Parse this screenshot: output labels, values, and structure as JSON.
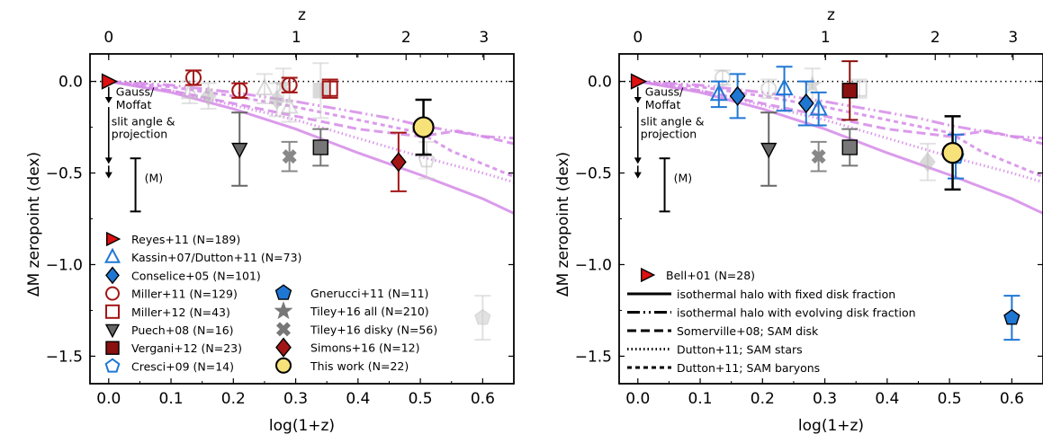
{
  "chart_data": [
    {
      "type": "scatter",
      "panel": "left",
      "xlabel": "log(1+z)",
      "ylabel": "ΔM zeropoint (dex)",
      "top_xlabel": "z",
      "xlim": [
        -0.03,
        0.65
      ],
      "ylim": [
        -1.65,
        0.15
      ],
      "x_ticks": [
        "0.0",
        "0.1",
        "0.2",
        "0.3",
        "0.4",
        "0.5",
        "0.6"
      ],
      "y_ticks": [
        "0.0",
        "−0.5",
        "−1.0",
        "−1.5"
      ],
      "top_ticks": [
        "0",
        "1",
        "2",
        "3"
      ],
      "annotations": {
        "psf": "Gauss/\nMoffat",
        "slit": "slit angle &\nprojection",
        "m": "(M)"
      },
      "legend_col1": [
        {
          "label": "Reyes+11 (N=189)",
          "marker": "tri-right",
          "color": "#dd1111"
        },
        {
          "label": "Kassin+07/Dutton+11 (N=73)",
          "marker": "tri-up-open",
          "color": "#1f77d4"
        },
        {
          "label": "Conselice+05 (N=101)",
          "marker": "diamond",
          "color": "#1f77d4"
        },
        {
          "label": "Miller+11 (N=129)",
          "marker": "circle-open",
          "color": "#a31515"
        },
        {
          "label": "Miller+12 (N=43)",
          "marker": "square-open",
          "color": "#a31515"
        },
        {
          "label": "Puech+08 (N=16)",
          "marker": "tri-down",
          "color": "#666666"
        },
        {
          "label": "Vergani+12 (N=23)",
          "marker": "square",
          "color": "#8b1010"
        },
        {
          "label": "Cresci+09 (N=14)",
          "marker": "pentagon-open",
          "color": "#1f77d4"
        }
      ],
      "legend_col2": [
        {
          "label": "Gnerucci+11 (N=11)",
          "marker": "pentagon",
          "color": "#1f77d4"
        },
        {
          "label": "Tiley+16 all (N=210)",
          "marker": "star",
          "color": "#777777"
        },
        {
          "label": "Tiley+16 disky (N=56)",
          "marker": "x",
          "color": "#777777"
        },
        {
          "label": "Simons+16 (N=12)",
          "marker": "diamond",
          "color": "#a31515"
        },
        {
          "label": "This work (N=22)",
          "marker": "circle",
          "color": "#f7e27a"
        }
      ],
      "points": [
        {
          "name": "Reyes+11",
          "x": 0.0,
          "y": 0.0,
          "yerr": 0,
          "marker": "tri-right",
          "color": "#dd1111",
          "alpha": 1
        },
        {
          "name": "Miller+11",
          "x": 0.136,
          "y": 0.02,
          "yerr": 0.04,
          "marker": "circle-open",
          "color": "#a31515",
          "alpha": 1
        },
        {
          "name": "Miller+11",
          "x": 0.21,
          "y": -0.05,
          "yerr": 0.04,
          "marker": "circle-open",
          "color": "#a31515",
          "alpha": 1
        },
        {
          "name": "Miller+11",
          "x": 0.29,
          "y": -0.02,
          "yerr": 0.04,
          "marker": "circle-open",
          "color": "#a31515",
          "alpha": 1
        },
        {
          "name": "Miller+12",
          "x": 0.355,
          "y": -0.04,
          "yerr": 0.05,
          "marker": "square-open",
          "color": "#a31515",
          "alpha": 1
        },
        {
          "name": "Puech+08",
          "x": 0.21,
          "y": -0.37,
          "yerr": 0.2,
          "marker": "tri-down",
          "color": "#666666",
          "alpha": 1
        },
        {
          "name": "Tiley+16 disky",
          "x": 0.29,
          "y": -0.41,
          "yerr": 0.08,
          "marker": "x",
          "color": "#888888",
          "alpha": 1
        },
        {
          "name": "Vergani+12",
          "x": 0.34,
          "y": -0.36,
          "yerr": 0.1,
          "marker": "square",
          "color": "#777777",
          "alpha": 1
        },
        {
          "name": "Simons+16",
          "x": 0.465,
          "y": -0.44,
          "yerr": 0.16,
          "marker": "diamond",
          "color": "#a31515",
          "alpha": 1
        },
        {
          "name": "This work",
          "x": 0.505,
          "y": -0.25,
          "yerr": 0.15,
          "xerr": 0.012,
          "marker": "circle",
          "color": "#f7e27a",
          "alpha": 1
        },
        {
          "name": "Kassin+07/Dutton+11",
          "x": 0.13,
          "y": -0.06,
          "yerr": 0.06,
          "marker": "tri-up-open",
          "color": "#bbbbbb",
          "alpha": 0.55
        },
        {
          "name": "Conselice+05",
          "x": 0.16,
          "y": -0.08,
          "yerr": 0.07,
          "marker": "diamond",
          "color": "#bbbbbb",
          "alpha": 0.55
        },
        {
          "name": "Kassin+07/Dutton+11",
          "x": 0.25,
          "y": -0.04,
          "yerr": 0.08,
          "marker": "tri-up-open",
          "color": "#bbbbbb",
          "alpha": 0.55
        },
        {
          "name": "Conselice+05",
          "x": 0.27,
          "y": -0.1,
          "yerr": 0.09,
          "marker": "diamond",
          "color": "#bbbbbb",
          "alpha": 0.55
        },
        {
          "name": "Kassin+07/Dutton+11",
          "x": 0.29,
          "y": -0.14,
          "yerr": 0.08,
          "marker": "tri-up-open",
          "color": "#bbbbbb",
          "alpha": 0.55
        },
        {
          "name": "Tiley+16 all",
          "x": 0.28,
          "y": -0.02,
          "yerr": 0.09,
          "marker": "star",
          "color": "#bbbbbb",
          "alpha": 0.55
        },
        {
          "name": "Vergani+12",
          "x": 0.34,
          "y": -0.05,
          "yerr": 0.15,
          "marker": "square",
          "color": "#bbbbbb",
          "alpha": 0.55
        },
        {
          "name": "Cresci+09",
          "x": 0.51,
          "y": -0.43,
          "yerr": 0.1,
          "marker": "pentagon-open",
          "color": "#bbbbbb",
          "alpha": 0.55
        },
        {
          "name": "Gnerucci+11",
          "x": 0.6,
          "y": -1.29,
          "yerr": 0.12,
          "marker": "pentagon",
          "color": "#cccccc",
          "alpha": 0.55
        }
      ],
      "model_lines": [
        {
          "style": "solid",
          "x": [
            0,
            0.1,
            0.2,
            0.3,
            0.4,
            0.5,
            0.6,
            0.65
          ],
          "y": [
            0,
            -0.06,
            -0.15,
            -0.26,
            -0.39,
            -0.51,
            -0.64,
            -0.72
          ]
        },
        {
          "style": "dotted",
          "x": [
            0,
            0.1,
            0.2,
            0.3,
            0.4,
            0.5,
            0.6,
            0.65
          ],
          "y": [
            0,
            -0.05,
            -0.13,
            -0.21,
            -0.31,
            -0.41,
            -0.5,
            -0.55
          ]
        },
        {
          "style": "dashdot",
          "x": [
            0,
            0.1,
            0.2,
            0.3,
            0.4,
            0.45,
            0.5,
            0.55,
            0.6,
            0.65
          ],
          "y": [
            0,
            -0.02,
            -0.06,
            -0.11,
            -0.17,
            -0.2,
            -0.24,
            -0.27,
            -0.3,
            -0.31
          ]
        },
        {
          "style": "dashed",
          "x": [
            0,
            0.1,
            0.2,
            0.3,
            0.4,
            0.5,
            0.56,
            0.6,
            0.65
          ],
          "y": [
            0,
            -0.05,
            -0.12,
            -0.19,
            -0.26,
            -0.3,
            -0.27,
            -0.3,
            -0.34
          ]
        },
        {
          "style": "dotdense",
          "x": [
            0,
            0.1,
            0.2,
            0.3,
            0.4,
            0.5,
            0.55,
            0.6,
            0.65
          ],
          "y": [
            0,
            -0.03,
            -0.08,
            -0.14,
            -0.21,
            -0.28,
            -0.38,
            -0.45,
            -0.52
          ]
        }
      ]
    },
    {
      "type": "scatter",
      "panel": "right",
      "xlabel": "log(1+z)",
      "ylabel": "ΔM zeropoint (dex)",
      "top_xlabel": "z",
      "xlim": [
        -0.03,
        0.65
      ],
      "ylim": [
        -1.65,
        0.15
      ],
      "x_ticks": [
        "0.0",
        "0.1",
        "0.2",
        "0.3",
        "0.4",
        "0.5",
        "0.6"
      ],
      "y_ticks": [
        "0.0",
        "−0.5",
        "−1.0",
        "−1.5"
      ],
      "top_ticks": [
        "0",
        "1",
        "2",
        "3"
      ],
      "annotations": {
        "psf": "Gauss/\nMoffat",
        "slit": "slit angle &\nprojection",
        "m": "(M)"
      },
      "legend": [
        {
          "label": "Bell+01 (N=28)",
          "marker": "tri-right",
          "color": "#dd1111"
        },
        {
          "label": "isothermal halo with fixed disk fraction",
          "style": "solid"
        },
        {
          "label": "isothermal halo with evolving disk fraction",
          "style": "dashdot"
        },
        {
          "label": "Somerville+08; SAM disk",
          "style": "dashed"
        },
        {
          "label": "Dutton+11; SAM stars",
          "style": "dotted"
        },
        {
          "label": "Dutton+11; SAM baryons",
          "style": "dotdense"
        }
      ],
      "points": [
        {
          "name": "Bell+01",
          "x": 0.0,
          "y": 0.0,
          "yerr": 0,
          "marker": "tri-right",
          "color": "#dd1111",
          "alpha": 1
        },
        {
          "name": "Kassin+07/Dutton+11",
          "x": 0.13,
          "y": -0.07,
          "yerr": 0.07,
          "marker": "tri-up-open",
          "color": "#1f77d4",
          "alpha": 1
        },
        {
          "name": "Conselice+05",
          "x": 0.16,
          "y": -0.08,
          "yerr": 0.12,
          "marker": "diamond",
          "color": "#1f77d4",
          "alpha": 1
        },
        {
          "name": "Kassin+07/Dutton+11",
          "x": 0.235,
          "y": -0.04,
          "yerr": 0.12,
          "marker": "tri-up-open",
          "color": "#1f77d4",
          "alpha": 1
        },
        {
          "name": "Conselice+05",
          "x": 0.27,
          "y": -0.12,
          "yerr": 0.12,
          "marker": "diamond",
          "color": "#1f77d4",
          "alpha": 1
        },
        {
          "name": "Kassin+07/Dutton+11",
          "x": 0.29,
          "y": -0.15,
          "yerr": 0.09,
          "marker": "tri-up-open",
          "color": "#1f77d4",
          "alpha": 1
        },
        {
          "name": "Vergani+12",
          "x": 0.34,
          "y": -0.05,
          "yerr": 0.16,
          "marker": "square",
          "color": "#8b1010",
          "alpha": 1
        },
        {
          "name": "Cresci+09",
          "x": 0.51,
          "y": -0.41,
          "yerr": 0.12,
          "marker": "pentagon-open",
          "color": "#1f77d4",
          "alpha": 1
        },
        {
          "name": "This work",
          "x": 0.505,
          "y": -0.39,
          "yerr": 0.2,
          "xerr": 0.012,
          "marker": "circle",
          "color": "#f7e27a",
          "alpha": 1
        },
        {
          "name": "Gnerucci+11",
          "x": 0.6,
          "y": -1.29,
          "yerr": 0.12,
          "marker": "pentagon",
          "color": "#1f77d4",
          "alpha": 1
        },
        {
          "name": "Puech+08",
          "x": 0.21,
          "y": -0.37,
          "yerr": 0.2,
          "marker": "tri-down",
          "color": "#666666",
          "alpha": 1
        },
        {
          "name": "Tiley+16 disky",
          "x": 0.29,
          "y": -0.41,
          "yerr": 0.08,
          "marker": "x",
          "color": "#888888",
          "alpha": 1
        },
        {
          "name": "Vergani+12",
          "x": 0.34,
          "y": -0.36,
          "yerr": 0.1,
          "marker": "square",
          "color": "#777777",
          "alpha": 1
        },
        {
          "name": "Miller+11",
          "x": 0.136,
          "y": 0.02,
          "yerr": 0.04,
          "marker": "circle-open",
          "color": "#bbbbbb",
          "alpha": 0.55
        },
        {
          "name": "Miller+11",
          "x": 0.21,
          "y": -0.04,
          "yerr": 0.05,
          "marker": "circle-open",
          "color": "#bbbbbb",
          "alpha": 0.55
        },
        {
          "name": "Tiley+16 all",
          "x": 0.28,
          "y": -0.02,
          "yerr": 0.09,
          "marker": "star",
          "color": "#bbbbbb",
          "alpha": 0.55
        },
        {
          "name": "Miller+12",
          "x": 0.355,
          "y": -0.04,
          "yerr": 0.05,
          "marker": "square-open",
          "color": "#bbbbbb",
          "alpha": 0.55
        },
        {
          "name": "Simons+16",
          "x": 0.465,
          "y": -0.44,
          "yerr": 0.1,
          "marker": "diamond",
          "color": "#bbbbbb",
          "alpha": 0.55
        }
      ],
      "model_lines": [
        {
          "style": "solid",
          "x": [
            0,
            0.1,
            0.2,
            0.3,
            0.4,
            0.5,
            0.6,
            0.65
          ],
          "y": [
            0,
            -0.06,
            -0.15,
            -0.26,
            -0.39,
            -0.51,
            -0.64,
            -0.72
          ]
        },
        {
          "style": "dotted",
          "x": [
            0,
            0.1,
            0.2,
            0.3,
            0.4,
            0.5,
            0.6,
            0.65
          ],
          "y": [
            0,
            -0.05,
            -0.13,
            -0.21,
            -0.31,
            -0.41,
            -0.5,
            -0.55
          ]
        },
        {
          "style": "dashdot",
          "x": [
            0,
            0.1,
            0.2,
            0.3,
            0.4,
            0.45,
            0.5,
            0.55,
            0.6,
            0.65
          ],
          "y": [
            0,
            -0.02,
            -0.06,
            -0.11,
            -0.17,
            -0.2,
            -0.24,
            -0.27,
            -0.3,
            -0.31
          ]
        },
        {
          "style": "dashed",
          "x": [
            0,
            0.1,
            0.2,
            0.3,
            0.4,
            0.5,
            0.56,
            0.6,
            0.65
          ],
          "y": [
            0,
            -0.05,
            -0.12,
            -0.19,
            -0.26,
            -0.3,
            -0.27,
            -0.3,
            -0.34
          ]
        },
        {
          "style": "dotdense",
          "x": [
            0,
            0.1,
            0.2,
            0.3,
            0.4,
            0.5,
            0.55,
            0.6,
            0.65
          ],
          "y": [
            0,
            -0.03,
            -0.08,
            -0.14,
            -0.21,
            -0.28,
            -0.38,
            -0.45,
            -0.52
          ]
        }
      ]
    }
  ]
}
